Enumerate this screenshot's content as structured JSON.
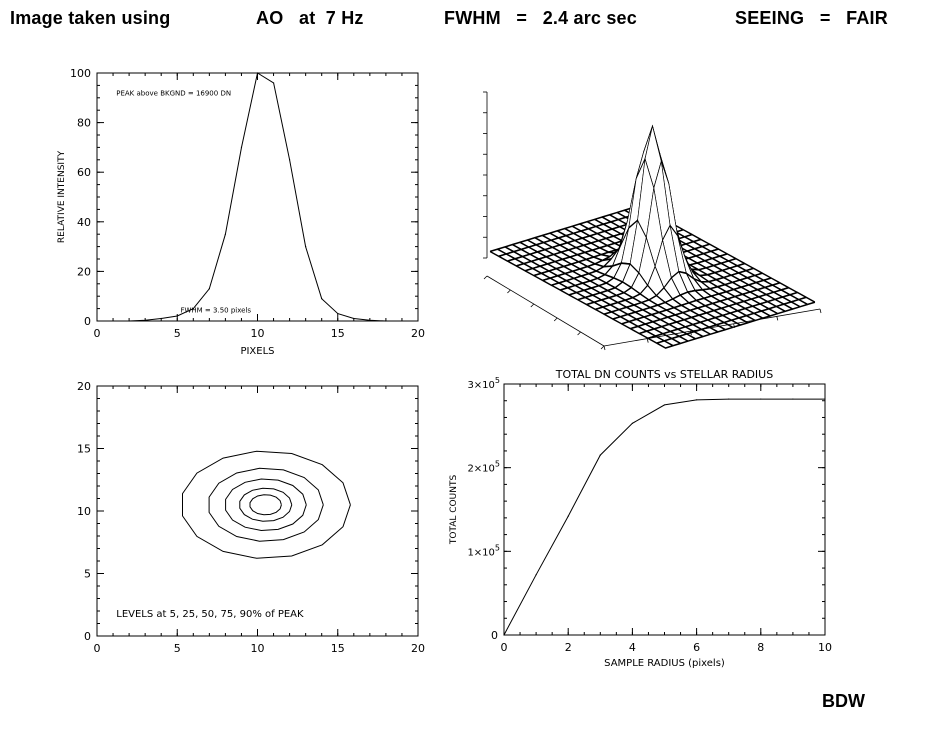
{
  "header": {
    "part1": "Image taken using",
    "part2": "AO   at  7 Hz",
    "part3": "FWHM   =   2.4 arc sec",
    "part4": "SEEING   =   FAIR"
  },
  "footer": {
    "author": "BDW"
  },
  "chart_data": [
    {
      "id": "profile",
      "type": "line",
      "title": "",
      "xlabel": "PIXELS",
      "ylabel": "RELATIVE INTENSITY",
      "xlim": [
        0,
        20
      ],
      "ylim": [
        0,
        100
      ],
      "xticks": [
        0,
        5,
        10,
        15,
        20
      ],
      "yticks": [
        0,
        20,
        40,
        60,
        80,
        100
      ],
      "x": [
        2,
        3,
        4,
        5,
        6,
        7,
        8,
        9,
        10,
        11,
        12,
        13,
        14,
        15,
        16,
        17,
        18
      ],
      "y": [
        0,
        0.3,
        1,
        2,
        5,
        13,
        35,
        70,
        100,
        96,
        65,
        30,
        9,
        3,
        1,
        0.3,
        0
      ],
      "annotations": [
        {
          "text": "PEAK above BKGND = 16900 DN",
          "x": 1.2,
          "y": 91
        },
        {
          "text": "FWHM = 3.50 pixels",
          "x": 5.2,
          "y": 3.5
        }
      ]
    },
    {
      "id": "surface",
      "type": "surface",
      "title": "",
      "grid_size": 21,
      "peak_center": [
        10,
        10
      ],
      "fwhm_pixels": 3.5,
      "peak_value": 100
    },
    {
      "id": "contour",
      "type": "contour",
      "title": "",
      "xlim": [
        0,
        20
      ],
      "ylim": [
        0,
        20
      ],
      "xticks": [
        0,
        5,
        10,
        15,
        20
      ],
      "yticks": [
        0,
        5,
        10,
        15,
        20
      ],
      "center": [
        10.5,
        10.5
      ],
      "levels_percent": [
        5,
        25,
        50,
        75,
        90
      ],
      "annotations": [
        {
          "text": "LEVELS at 5, 25, 50, 75, 90% of PEAK",
          "x": 1.2,
          "y": 0.9
        }
      ]
    },
    {
      "id": "growth",
      "type": "line",
      "title": "TOTAL DN COUNTS vs STELLAR RADIUS",
      "xlabel": "SAMPLE RADIUS  (pixels)",
      "ylabel": "TOTAL COUNTS",
      "xlim": [
        0,
        10
      ],
      "ylim": [
        0,
        300000
      ],
      "xticks": [
        0,
        2,
        4,
        6,
        8,
        10
      ],
      "yticks": [
        {
          "value": 0,
          "label": "0"
        },
        {
          "value": 100000,
          "label": "1×10",
          "exp": "5"
        },
        {
          "value": 200000,
          "label": "2×10",
          "exp": "5"
        },
        {
          "value": 300000,
          "label": "3×10",
          "exp": "5"
        }
      ],
      "x": [
        0,
        1,
        2,
        3,
        4,
        5,
        6,
        7,
        8,
        9,
        10
      ],
      "y": [
        0,
        72000,
        142000,
        215000,
        253000,
        275000,
        281000,
        282000,
        282000,
        282000,
        282000
      ]
    }
  ]
}
